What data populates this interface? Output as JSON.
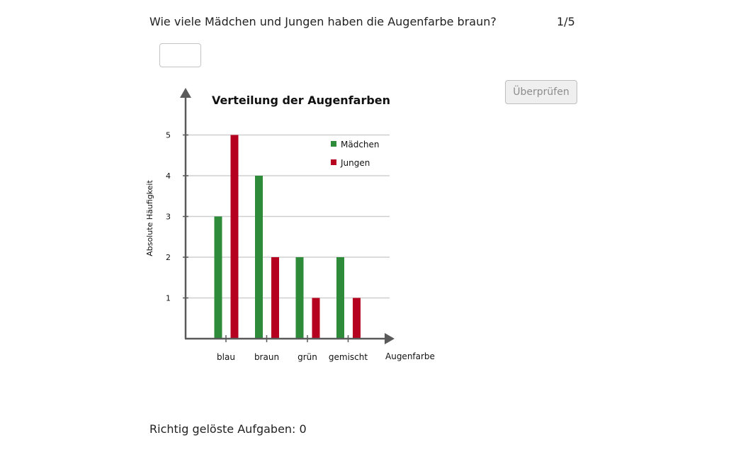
{
  "question": {
    "text": "Wie viele Mädchen und Jungen haben die Augenfarbe braun?",
    "counter": "1/5"
  },
  "answer": {
    "value": "",
    "placeholder": ""
  },
  "check_button": {
    "label": "Überprüfen",
    "enabled": false
  },
  "score": {
    "text": "Richtig gelöste Aufgaben: 0"
  },
  "chart_data": {
    "type": "bar",
    "title": "Verteilung der Augenfarben",
    "xlabel": "Augenfarbe",
    "ylabel": "Absolute Häufigkeit",
    "categories": [
      "blau",
      "braun",
      "grün",
      "gemischt"
    ],
    "series": [
      {
        "name": "Mädchen",
        "values": [
          3,
          4,
          2,
          2
        ],
        "color": "#2e8b3a"
      },
      {
        "name": "Jungen",
        "values": [
          5,
          2,
          1,
          1
        ],
        "color": "#b5001f"
      }
    ],
    "yticks": [
      1,
      2,
      3,
      4,
      5
    ],
    "ylim": [
      0,
      5
    ],
    "grid": true,
    "legend_position": "top-right"
  }
}
